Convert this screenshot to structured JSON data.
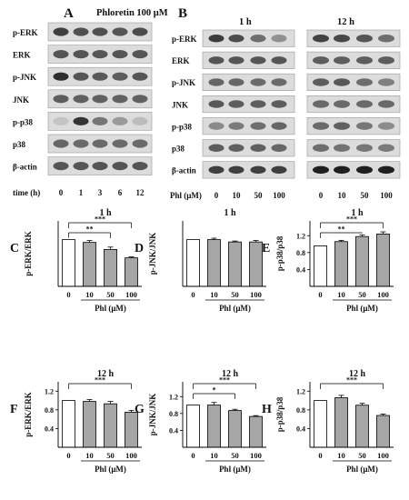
{
  "panelA": {
    "letter": "A",
    "title": "Phloretin 100 μM",
    "rows": [
      "p-ERK",
      "ERK",
      "p-JNK",
      "JNK",
      "p-p38",
      "p38",
      "β-actin"
    ],
    "xlabel": "time (h)",
    "ticks": [
      "0",
      "1",
      "3",
      "6",
      "12"
    ],
    "intensity": [
      [
        0.8,
        0.72,
        0.72,
        0.7,
        0.74
      ],
      [
        0.7,
        0.7,
        0.7,
        0.7,
        0.7
      ],
      [
        0.88,
        0.7,
        0.68,
        0.66,
        0.7
      ],
      [
        0.66,
        0.64,
        0.64,
        0.64,
        0.64
      ],
      [
        0.18,
        0.85,
        0.55,
        0.38,
        0.22
      ],
      [
        0.62,
        0.6,
        0.6,
        0.6,
        0.6
      ],
      [
        0.7,
        0.7,
        0.7,
        0.7,
        0.7
      ]
    ]
  },
  "panelB": {
    "letter": "B",
    "headers": [
      "1 h",
      "12 h"
    ],
    "rows": [
      "p-ERK",
      "ERK",
      "p-JNK",
      "JNK",
      "p-p38",
      "p38",
      "β-actin"
    ],
    "xlabel": "Phl (μM)",
    "ticks": [
      "0",
      "10",
      "50",
      "100"
    ],
    "left": [
      [
        0.82,
        0.74,
        0.58,
        0.42
      ],
      [
        0.7,
        0.7,
        0.7,
        0.7
      ],
      [
        0.62,
        0.62,
        0.6,
        0.6
      ],
      [
        0.68,
        0.66,
        0.66,
        0.66
      ],
      [
        0.45,
        0.52,
        0.58,
        0.62
      ],
      [
        0.66,
        0.64,
        0.64,
        0.62
      ],
      [
        0.8,
        0.8,
        0.8,
        0.8
      ]
    ],
    "right": [
      [
        0.78,
        0.76,
        0.7,
        0.58
      ],
      [
        0.66,
        0.66,
        0.66,
        0.66
      ],
      [
        0.66,
        0.68,
        0.58,
        0.5
      ],
      [
        0.6,
        0.6,
        0.6,
        0.6
      ],
      [
        0.6,
        0.64,
        0.54,
        0.44
      ],
      [
        0.58,
        0.56,
        0.54,
        0.52
      ],
      [
        0.95,
        0.95,
        0.95,
        0.95
      ]
    ]
  },
  "chart_data": [
    {
      "panel": "C",
      "type": "bar",
      "title": "1 h",
      "ylabel": "p-ERK/ERK",
      "xlabel": "Phl (μM)",
      "categories": [
        "0",
        "10",
        "50",
        "100"
      ],
      "values": [
        1.0,
        0.94,
        0.79,
        0.61
      ],
      "errors": [
        0.0,
        0.04,
        0.05,
        0.02
      ],
      "ylim": [
        0,
        1.4
      ],
      "yticks": [],
      "sig": [
        {
          "from": 0,
          "to": 2,
          "label": "**"
        },
        {
          "from": 0,
          "to": 3,
          "label": "***"
        }
      ]
    },
    {
      "panel": "D",
      "type": "bar",
      "title": "1 h",
      "ylabel": "p-JNK/JNK",
      "xlabel": "Phl (μM)",
      "categories": [
        "0",
        "10",
        "50",
        "100"
      ],
      "values": [
        1.0,
        1.0,
        0.95,
        0.95
      ],
      "errors": [
        0.0,
        0.03,
        0.02,
        0.03
      ],
      "ylim": [
        0,
        1.4
      ],
      "yticks": [],
      "sig": []
    },
    {
      "panel": "E",
      "type": "bar",
      "title": "1 h",
      "ylabel": "p-p38/p38",
      "xlabel": "Phl (μM)",
      "categories": [
        "0",
        "10",
        "50",
        "100"
      ],
      "values": [
        0.96,
        1.06,
        1.18,
        1.24
      ],
      "errors": [
        0.0,
        0.03,
        0.04,
        0.05
      ],
      "ylim": [
        0,
        1.55
      ],
      "yticks": [
        "0.4",
        "0.8",
        "1.2"
      ],
      "sig": [
        {
          "from": 0,
          "to": 2,
          "label": "**"
        },
        {
          "from": 0,
          "to": 3,
          "label": "***"
        }
      ]
    },
    {
      "panel": "F",
      "type": "bar",
      "title": "12 h",
      "ylabel": "p-ERK/ERK",
      "xlabel": "Phl (μM)",
      "categories": [
        "0",
        "10",
        "50",
        "100"
      ],
      "values": [
        1.0,
        0.98,
        0.93,
        0.75
      ],
      "errors": [
        0.0,
        0.04,
        0.05,
        0.04
      ],
      "ylim": [
        0,
        1.4
      ],
      "yticks": [
        "0.4",
        "0.8",
        "1.2"
      ],
      "sig": [
        {
          "from": 0,
          "to": 3,
          "label": "***"
        }
      ]
    },
    {
      "panel": "G",
      "type": "bar",
      "title": "12 h",
      "ylabel": "p-JNK/JNK",
      "xlabel": "Phl (μM)",
      "categories": [
        "0",
        "10",
        "50",
        "100"
      ],
      "values": [
        1.0,
        1.0,
        0.87,
        0.73
      ],
      "errors": [
        0.0,
        0.06,
        0.03,
        0.02
      ],
      "ylim": [
        0,
        1.55
      ],
      "yticks": [
        "0.4",
        "0.8",
        "1.2"
      ],
      "sig": [
        {
          "from": 0,
          "to": 2,
          "label": "*"
        },
        {
          "from": 0,
          "to": 3,
          "label": "***"
        }
      ]
    },
    {
      "panel": "H",
      "type": "bar",
      "title": "12 h",
      "ylabel": "p-p38/p38",
      "xlabel": "Phl (μM)",
      "categories": [
        "0",
        "10",
        "50",
        "100"
      ],
      "values": [
        1.0,
        1.06,
        0.9,
        0.68
      ],
      "errors": [
        0.0,
        0.05,
        0.04,
        0.03
      ],
      "ylim": [
        0,
        1.4
      ],
      "yticks": [
        "0.4",
        "0.8",
        "1.2"
      ],
      "sig": [
        {
          "from": 0,
          "to": 3,
          "label": "***"
        }
      ]
    }
  ]
}
